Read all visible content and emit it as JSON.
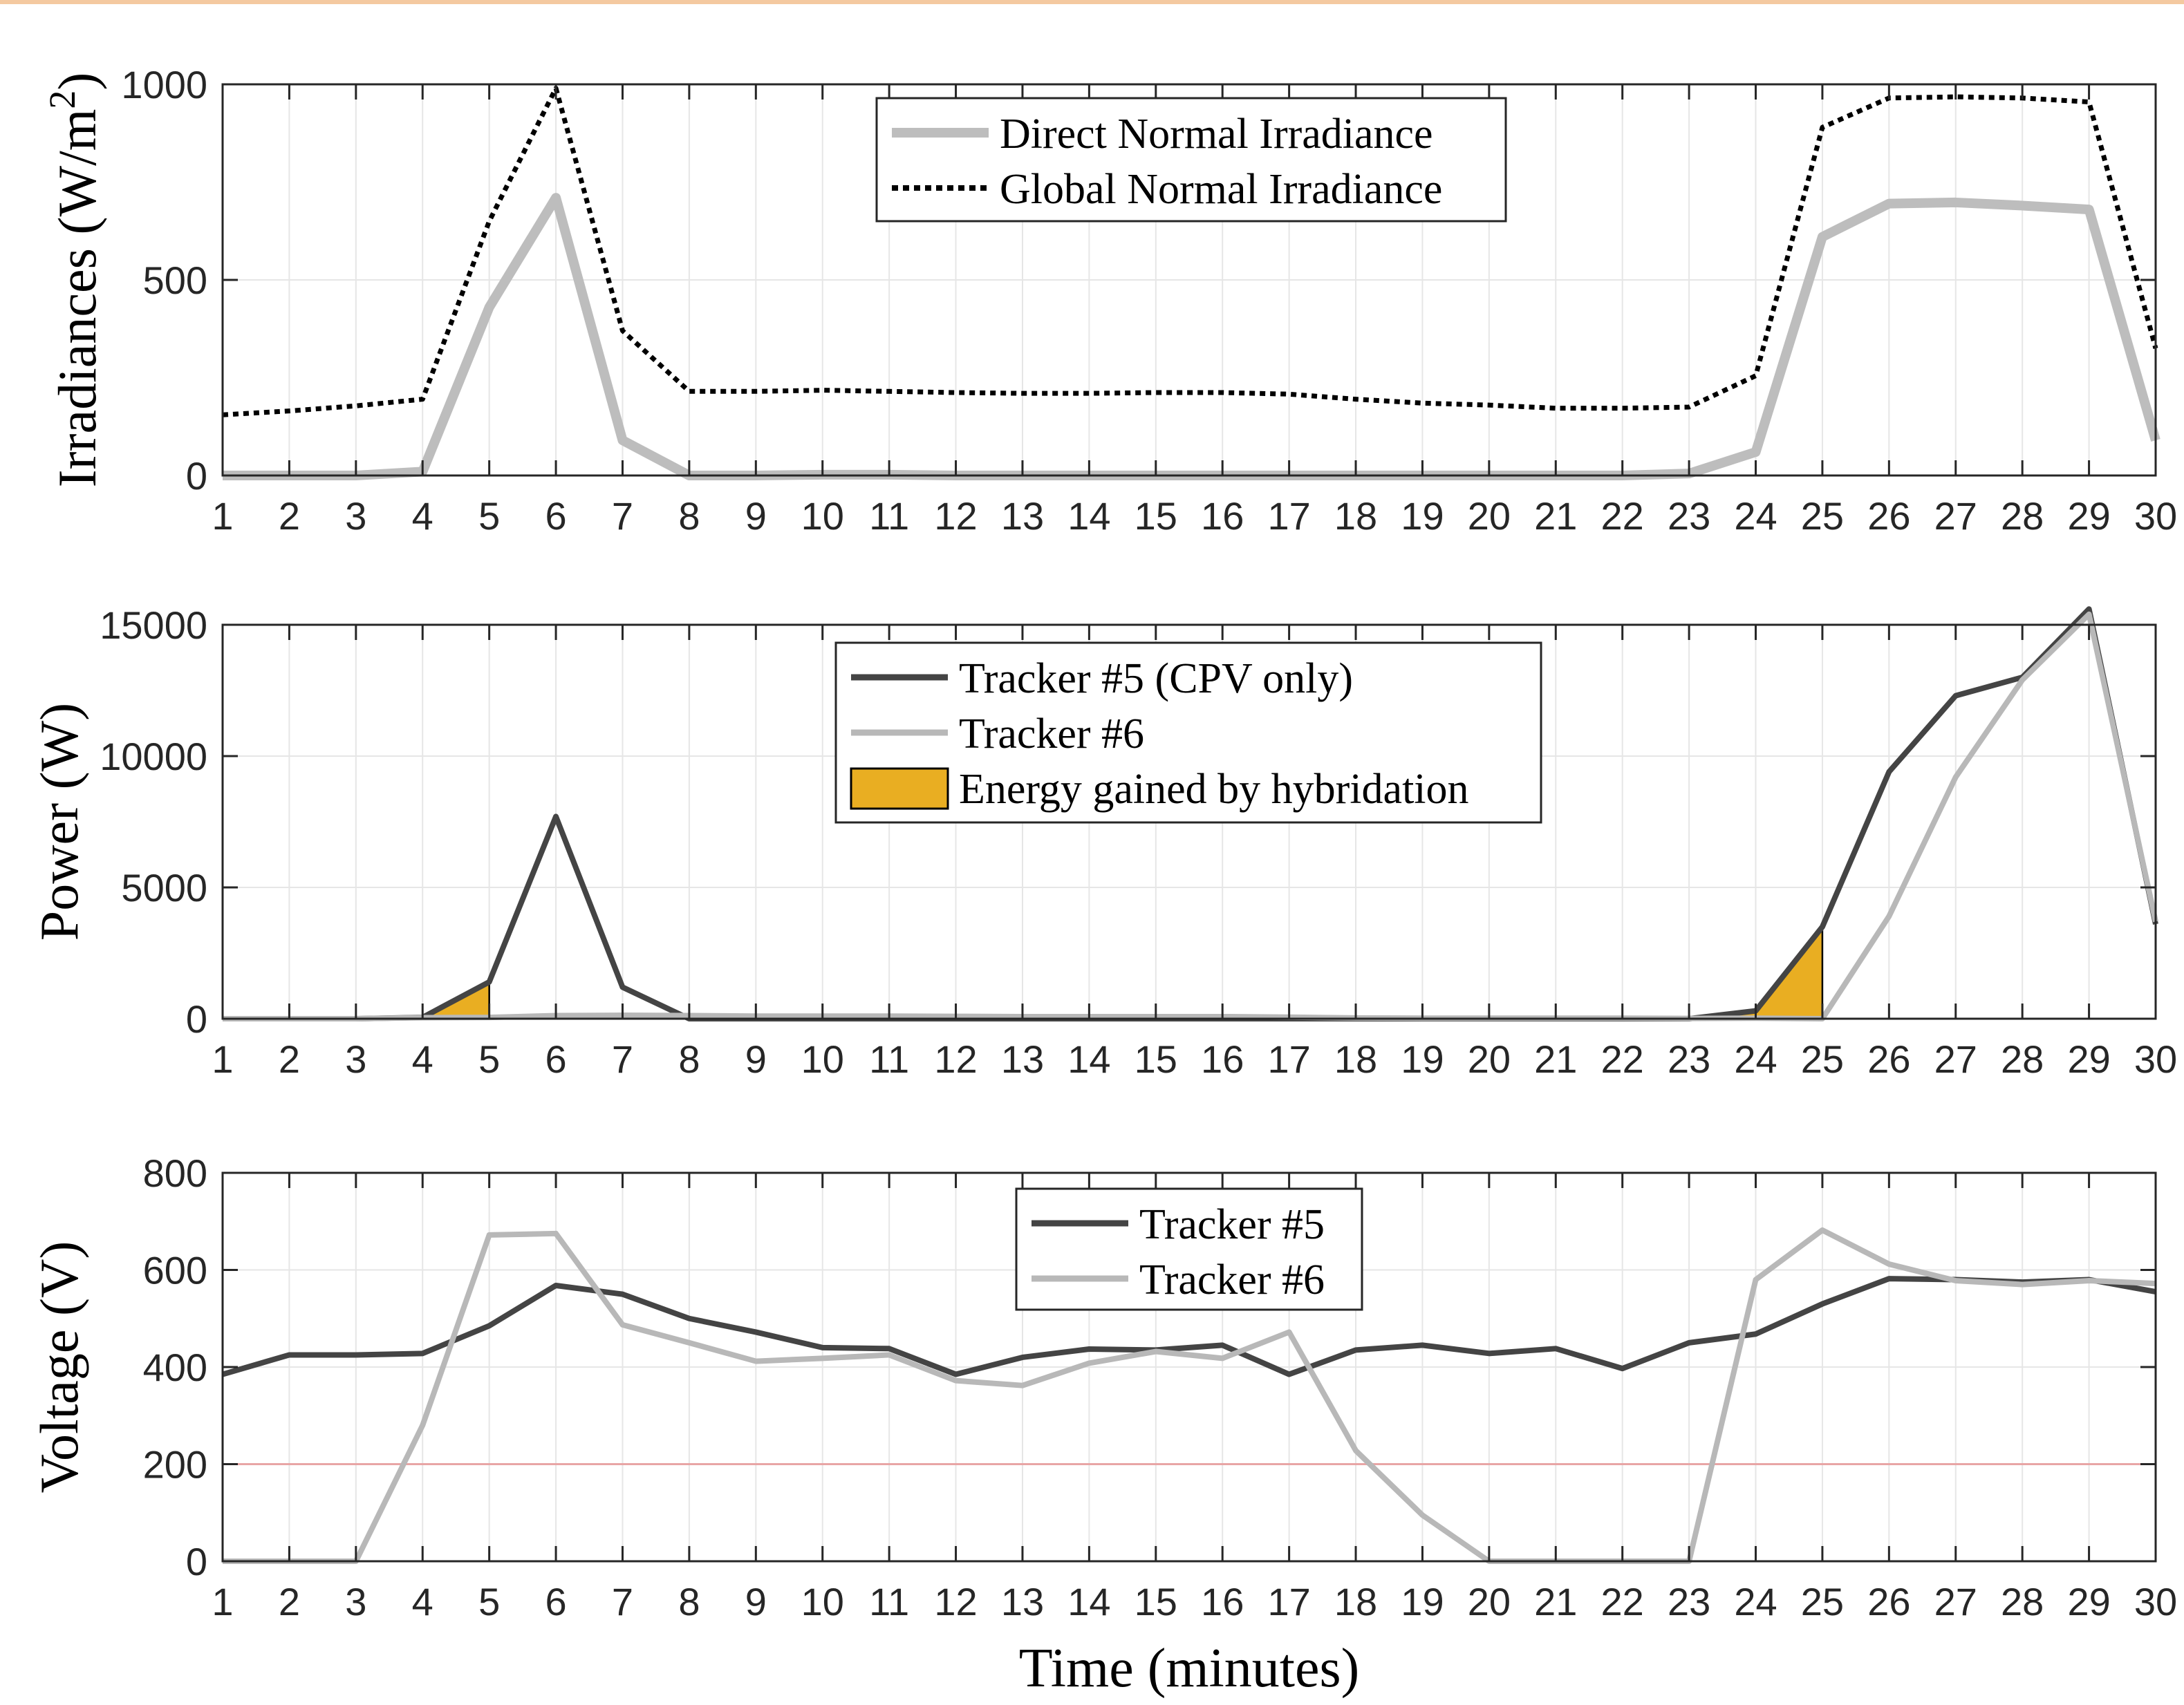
{
  "colors": {
    "dni": "#bdbdbd",
    "gni": "#000000",
    "tracker5": "#444444",
    "tracker6": "#b8b8b8",
    "hybrid_fill": "#e9ae22",
    "reference_line": "#e8a5a5",
    "grid": "#e6e6e6"
  },
  "chart_data": [
    {
      "type": "line",
      "ylabel": "Irradiances (W/m²)",
      "ylabel_base": "Irradiances (W/m",
      "ylabel_sup": "2",
      "ylabel_end": ")",
      "xlabel": "",
      "x": [
        1,
        2,
        3,
        4,
        5,
        6,
        7,
        8,
        9,
        10,
        11,
        12,
        13,
        14,
        15,
        16,
        17,
        18,
        19,
        20,
        21,
        22,
        23,
        24,
        25,
        26,
        27,
        28,
        29,
        30
      ],
      "xlim": [
        1,
        30
      ],
      "ylim": [
        0,
        1000
      ],
      "yticks": [
        0,
        500,
        1000
      ],
      "legend_position": "top-center",
      "series": [
        {
          "name": "Direct Normal Irradiance",
          "style": "solid",
          "color": "dni",
          "values": [
            0,
            0,
            0,
            10,
            430,
            710,
            90,
            0,
            0,
            2,
            2,
            0,
            0,
            0,
            0,
            0,
            0,
            0,
            0,
            0,
            0,
            0,
            5,
            60,
            610,
            695,
            698,
            690,
            680,
            90
          ]
        },
        {
          "name": "Global Normal Irradiance",
          "style": "dotted",
          "color": "gni",
          "values": [
            155,
            165,
            178,
            195,
            650,
            990,
            370,
            215,
            215,
            218,
            215,
            212,
            210,
            210,
            212,
            212,
            208,
            195,
            185,
            180,
            172,
            172,
            175,
            255,
            890,
            965,
            968,
            965,
            955,
            325
          ]
        }
      ]
    },
    {
      "type": "line",
      "ylabel": "Power (W)",
      "xlabel": "",
      "x": [
        1,
        2,
        3,
        4,
        5,
        6,
        7,
        8,
        9,
        10,
        11,
        12,
        13,
        14,
        15,
        16,
        17,
        18,
        19,
        20,
        21,
        22,
        23,
        24,
        25,
        26,
        27,
        28,
        29,
        30
      ],
      "xlim": [
        1,
        30
      ],
      "ylim": [
        0,
        15000
      ],
      "yticks": [
        0,
        5000,
        10000,
        15000
      ],
      "legend_position": "top-center",
      "series": [
        {
          "name": "Tracker #5 (CPV only)",
          "color": "tracker5",
          "values": [
            0,
            0,
            0,
            50,
            1400,
            7700,
            1200,
            0,
            0,
            0,
            0,
            0,
            0,
            0,
            0,
            0,
            0,
            0,
            0,
            0,
            0,
            0,
            0,
            300,
            3500,
            9400,
            12300,
            13000,
            15600,
            3600
          ]
        },
        {
          "name": "Tracker #6",
          "color": "tracker6",
          "values": [
            0,
            0,
            0,
            40,
            50,
            120,
            130,
            120,
            100,
            100,
            100,
            90,
            80,
            80,
            80,
            80,
            60,
            30,
            20,
            20,
            20,
            20,
            10,
            20,
            0,
            3900,
            9200,
            12900,
            15400,
            3700
          ]
        }
      ],
      "areas": [
        {
          "name": "Energy gained by hybridation",
          "color": "hybrid_fill",
          "polygons": [
            [
              [
                4,
                0
              ],
              [
                5,
                1400
              ],
              [
                5,
                0
              ]
            ],
            [
              [
                23,
                0
              ],
              [
                24,
                300
              ],
              [
                25,
                3500
              ],
              [
                25,
                0
              ]
            ]
          ]
        }
      ]
    },
    {
      "type": "line",
      "ylabel": "Voltage (V)",
      "xlabel": "Time (minutes)",
      "x": [
        1,
        2,
        3,
        4,
        5,
        6,
        7,
        8,
        9,
        10,
        11,
        12,
        13,
        14,
        15,
        16,
        17,
        18,
        19,
        20,
        21,
        22,
        23,
        24,
        25,
        26,
        27,
        28,
        29,
        30
      ],
      "xlim": [
        1,
        30
      ],
      "ylim": [
        0,
        800
      ],
      "yticks": [
        0,
        200,
        400,
        600,
        800
      ],
      "legend_position": "top-center",
      "reference_line": {
        "y": 200,
        "color": "reference_line"
      },
      "series": [
        {
          "name": "Tracker #5",
          "color": "tracker5",
          "values": [
            385,
            425,
            425,
            428,
            485,
            568,
            550,
            500,
            472,
            440,
            438,
            385,
            420,
            437,
            435,
            445,
            385,
            435,
            445,
            428,
            438,
            397,
            450,
            468,
            530,
            582,
            580,
            575,
            580,
            555
          ]
        },
        {
          "name": "Tracker #6",
          "color": "tracker6",
          "values": [
            0,
            0,
            0,
            280,
            672,
            675,
            487,
            450,
            412,
            418,
            425,
            372,
            362,
            408,
            432,
            418,
            472,
            228,
            95,
            0,
            0,
            0,
            0,
            580,
            682,
            612,
            578,
            570,
            578,
            572
          ]
        }
      ]
    }
  ]
}
